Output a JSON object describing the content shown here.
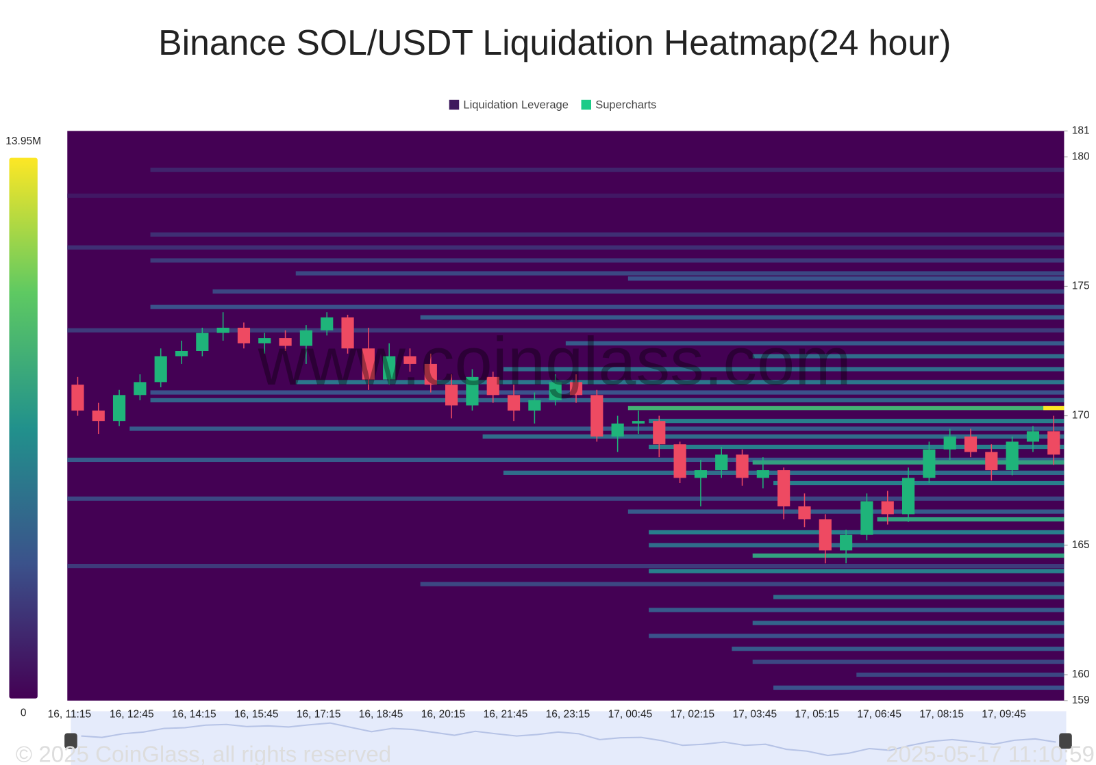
{
  "chart_data": {
    "type": "liquidation-heatmap",
    "title": "Binance SOL/USDT Liquidation Heatmap(24 hour)",
    "legend": [
      {
        "name": "Liquidation Leverage",
        "color": "#3e1a5d"
      },
      {
        "name": "Supercharts",
        "color": "#1ccb88"
      }
    ],
    "watermark": "www.coinglass.com",
    "copyright": "© 2025 CoinGlass, all rights reserved",
    "timestamp": "2025-05-17 11:10:59",
    "ylim": [
      159,
      181
    ],
    "yticks": [
      159,
      160,
      165,
      170,
      175,
      180,
      181
    ],
    "categories": [
      "16, 11:15",
      null,
      null,
      "16, 12:45",
      null,
      null,
      "16, 14:15",
      null,
      null,
      "16, 15:45",
      null,
      null,
      "16, 17:15",
      null,
      null,
      "16, 18:45",
      null,
      null,
      "16, 20:15",
      null,
      null,
      "16, 21:45",
      null,
      null,
      "16, 23:15",
      null,
      null,
      "17, 00:45",
      null,
      null,
      "17, 02:15",
      null,
      null,
      "17, 03:45",
      null,
      null,
      "17, 05:15",
      null,
      null,
      "17, 06:45",
      null,
      null,
      "17, 08:15",
      null,
      null,
      "17, 09:45",
      null,
      null
    ],
    "open": [
      171.2,
      170.2,
      169.8,
      170.8,
      171.3,
      172.3,
      172.5,
      173.2,
      173.4,
      172.8,
      173.0,
      172.7,
      173.3,
      173.8,
      172.6,
      171.4,
      172.3,
      172.0,
      171.2,
      170.4,
      171.5,
      170.8,
      170.2,
      170.6,
      171.3,
      170.8,
      169.2,
      169.7,
      169.8,
      168.9,
      167.6,
      167.9,
      168.5,
      167.6,
      167.9,
      166.5,
      166.0,
      164.8,
      165.4,
      166.7,
      166.2,
      167.6,
      168.7,
      169.2,
      168.6,
      167.9,
      169.0,
      169.4
    ],
    "high": [
      171.5,
      170.5,
      171.0,
      171.6,
      172.6,
      172.9,
      173.4,
      174.0,
      173.6,
      173.2,
      173.3,
      173.5,
      174.0,
      173.9,
      173.4,
      172.8,
      172.6,
      172.4,
      171.6,
      171.8,
      171.7,
      171.2,
      170.9,
      171.6,
      171.6,
      171.0,
      170.0,
      170.2,
      170.0,
      169.0,
      168.3,
      168.8,
      168.7,
      168.4,
      168.0,
      167.0,
      166.2,
      165.6,
      167.0,
      167.1,
      168.0,
      169.0,
      169.5,
      169.5,
      168.9,
      169.2,
      169.6,
      170.0
    ],
    "low": [
      170.0,
      169.3,
      169.6,
      170.6,
      171.1,
      172.0,
      172.3,
      172.9,
      172.6,
      172.4,
      172.5,
      172.0,
      173.1,
      172.4,
      171.0,
      171.2,
      171.7,
      170.9,
      169.9,
      170.2,
      170.5,
      169.8,
      169.7,
      170.4,
      170.5,
      169.0,
      168.6,
      169.3,
      168.4,
      167.4,
      166.5,
      167.6,
      167.3,
      167.2,
      166.0,
      165.7,
      164.3,
      164.3,
      165.2,
      165.8,
      165.9,
      167.4,
      168.3,
      168.4,
      167.5,
      167.7,
      168.6,
      168.1
    ],
    "close": [
      170.2,
      169.8,
      170.8,
      171.3,
      172.3,
      172.5,
      173.2,
      173.4,
      172.8,
      173.0,
      172.7,
      173.3,
      173.8,
      172.6,
      171.4,
      172.3,
      172.0,
      171.2,
      170.4,
      171.5,
      170.8,
      170.2,
      170.6,
      171.3,
      170.8,
      169.2,
      169.7,
      169.8,
      168.9,
      167.6,
      167.9,
      168.5,
      167.6,
      167.9,
      166.5,
      166.0,
      164.8,
      165.4,
      166.7,
      166.2,
      167.6,
      168.7,
      169.2,
      168.6,
      167.9,
      169.0,
      169.4,
      168.5
    ],
    "up_color": "#1fb47a",
    "down_color": "#ee4a62",
    "colorbar": {
      "range": [
        0,
        13950000
      ],
      "ticks": [
        0,
        {
          "value": 13950000,
          "label": "13.95M"
        }
      ],
      "colors": [
        "#440154",
        "#3b528b",
        "#21918c",
        "#5ec962",
        "#fde725"
      ]
    },
    "bands": [
      {
        "price": 179.5,
        "start": 4,
        "value": 1500000
      },
      {
        "price": 178.5,
        "start": 0,
        "value": 1000000
      },
      {
        "price": 177,
        "start": 4,
        "value": 2000000
      },
      {
        "price": 176.5,
        "start": 0,
        "value": 2000000
      },
      {
        "price": 176,
        "start": 4,
        "value": 2500000
      },
      {
        "price": 175.5,
        "start": 11,
        "value": 3000000
      },
      {
        "price": 175.3,
        "start": 27,
        "value": 3500000
      },
      {
        "price": 174.8,
        "start": 7,
        "value": 3000000
      },
      {
        "price": 174.2,
        "start": 4,
        "value": 3500000
      },
      {
        "price": 173.8,
        "start": 17,
        "value": 4000000
      },
      {
        "price": 173.3,
        "start": 0,
        "value": 2500000
      },
      {
        "price": 172.8,
        "start": 24,
        "value": 4000000
      },
      {
        "price": 172.3,
        "start": 33,
        "value": 5000000
      },
      {
        "price": 171.8,
        "start": 21,
        "value": 5000000
      },
      {
        "price": 171.3,
        "start": 11,
        "value": 5500000
      },
      {
        "price": 170.9,
        "start": 4,
        "value": 3500000
      },
      {
        "price": 170.6,
        "start": 4,
        "value": 4500000
      },
      {
        "price": 170.3,
        "start": 27,
        "value": 9000000
      },
      {
        "price": 170.3,
        "start": 47,
        "value": 13950000
      },
      {
        "price": 169.8,
        "start": 28,
        "value": 6000000
      },
      {
        "price": 169.5,
        "start": 3,
        "value": 4000000
      },
      {
        "price": 169.2,
        "start": 20,
        "value": 5000000
      },
      {
        "price": 168.8,
        "start": 28,
        "value": 6000000
      },
      {
        "price": 168.3,
        "start": 0,
        "value": 4000000
      },
      {
        "price": 168.2,
        "start": 33,
        "value": 8000000
      },
      {
        "price": 167.8,
        "start": 21,
        "value": 5000000
      },
      {
        "price": 167.4,
        "start": 34,
        "value": 6000000
      },
      {
        "price": 166.8,
        "start": 0,
        "value": 3000000
      },
      {
        "price": 166.3,
        "start": 27,
        "value": 4000000
      },
      {
        "price": 166.0,
        "start": 39,
        "value": 8000000
      },
      {
        "price": 165.5,
        "start": 28,
        "value": 6000000
      },
      {
        "price": 165.0,
        "start": 28,
        "value": 5000000
      },
      {
        "price": 164.6,
        "start": 33,
        "value": 8000000
      },
      {
        "price": 164.2,
        "start": 0,
        "value": 2500000
      },
      {
        "price": 164.0,
        "start": 28,
        "value": 6000000
      },
      {
        "price": 163.5,
        "start": 17,
        "value": 3000000
      },
      {
        "price": 163.0,
        "start": 34,
        "value": 5000000
      },
      {
        "price": 162.5,
        "start": 28,
        "value": 4000000
      },
      {
        "price": 162.0,
        "start": 33,
        "value": 4500000
      },
      {
        "price": 161.5,
        "start": 28,
        "value": 3500000
      },
      {
        "price": 161.0,
        "start": 32,
        "value": 4000000
      },
      {
        "price": 160.5,
        "start": 33,
        "value": 3000000
      },
      {
        "price": 160.0,
        "start": 38,
        "value": 3000000
      },
      {
        "price": 159.5,
        "start": 34,
        "value": 3500000
      }
    ]
  }
}
